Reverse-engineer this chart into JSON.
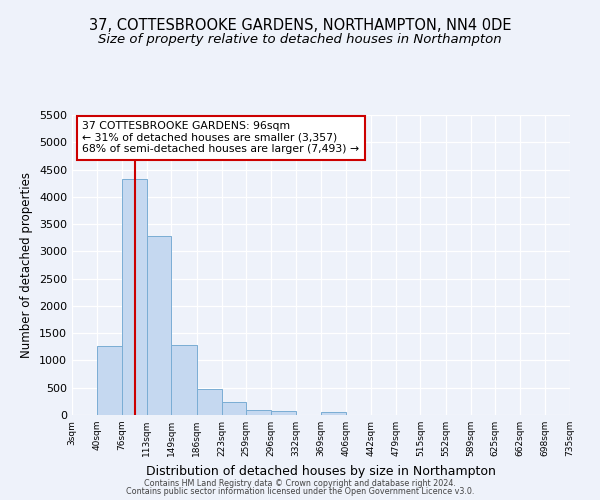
{
  "title": "37, COTTESBROOKE GARDENS, NORTHAMPTON, NN4 0DE",
  "subtitle": "Size of property relative to detached houses in Northampton",
  "xlabel": "Distribution of detached houses by size in Northampton",
  "ylabel": "Number of detached properties",
  "bin_labels": [
    "3sqm",
    "40sqm",
    "76sqm",
    "113sqm",
    "149sqm",
    "186sqm",
    "223sqm",
    "259sqm",
    "296sqm",
    "332sqm",
    "369sqm",
    "406sqm",
    "442sqm",
    "479sqm",
    "515sqm",
    "552sqm",
    "589sqm",
    "625sqm",
    "662sqm",
    "698sqm",
    "735sqm"
  ],
  "bar_values": [
    0,
    1270,
    4330,
    3290,
    1290,
    480,
    230,
    90,
    65,
    0,
    50,
    0,
    0,
    0,
    0,
    0,
    0,
    0,
    0,
    0
  ],
  "bar_color": "#c5d8f0",
  "bar_edge_color": "#7aadd4",
  "property_line_x": 96,
  "property_line_color": "#cc0000",
  "annotation_title": "37 COTTESBROOKE GARDENS: 96sqm",
  "annotation_line1": "← 31% of detached houses are smaller (3,357)",
  "annotation_line2": "68% of semi-detached houses are larger (7,493) →",
  "annotation_box_color": "#ffffff",
  "annotation_box_edge": "#cc0000",
  "ylim": [
    0,
    5500
  ],
  "yticks": [
    0,
    500,
    1000,
    1500,
    2000,
    2500,
    3000,
    3500,
    4000,
    4500,
    5000,
    5500
  ],
  "bin_edges": [
    3,
    40,
    76,
    113,
    149,
    186,
    223,
    259,
    296,
    332,
    369,
    406,
    442,
    479,
    515,
    552,
    589,
    625,
    662,
    698,
    735
  ],
  "footer1": "Contains HM Land Registry data © Crown copyright and database right 2024.",
  "footer2": "Contains public sector information licensed under the Open Government Licence v3.0.",
  "background_color": "#eef2fa",
  "grid_color": "#ffffff",
  "title_fontsize": 10.5,
  "subtitle_fontsize": 9.5
}
